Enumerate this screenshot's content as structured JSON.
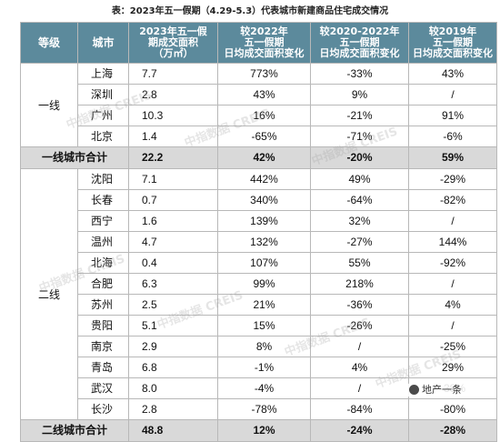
{
  "title": "表：2023年五一假期（4.29-5.3）代表城市新建商品住宅成交情况",
  "headers": {
    "level": "等级",
    "city": "城市",
    "area": [
      "2023年五一假",
      "期成交面积",
      "（万㎡）"
    ],
    "vs2022": [
      "较2022年",
      "五一假期",
      "日均成交面积变化"
    ],
    "vs2020_2022": [
      "较2020-2022年",
      "五一假期",
      "日均成交面积变化"
    ],
    "vs2019": [
      "较2019年",
      "五一假期",
      "日均成交面积变化"
    ]
  },
  "tier1": {
    "label": "一线",
    "rows": [
      {
        "city": "上海",
        "area": "7.7",
        "vs2022": "773%",
        "vs2020_2022": "-33%",
        "vs2019": "43%"
      },
      {
        "city": "深圳",
        "area": "2.8",
        "vs2022": "43%",
        "vs2020_2022": "9%",
        "vs2019": "/"
      },
      {
        "city": "广州",
        "area": "10.3",
        "vs2022": "16%",
        "vs2020_2022": "-21%",
        "vs2019": "91%"
      },
      {
        "city": "北京",
        "area": "1.4",
        "vs2022": "-65%",
        "vs2020_2022": "-71%",
        "vs2019": "-6%"
      }
    ],
    "total": {
      "label": "一线城市合计",
      "area": "22.2",
      "vs2022": "42%",
      "vs2020_2022": "-20%",
      "vs2019": "59%"
    }
  },
  "tier2": {
    "label": "二线",
    "rows": [
      {
        "city": "沈阳",
        "area": "7.1",
        "vs2022": "442%",
        "vs2020_2022": "49%",
        "vs2019": "-29%"
      },
      {
        "city": "长春",
        "area": "0.7",
        "vs2022": "340%",
        "vs2020_2022": "-64%",
        "vs2019": "-82%"
      },
      {
        "city": "西宁",
        "area": "1.6",
        "vs2022": "139%",
        "vs2020_2022": "32%",
        "vs2019": "/"
      },
      {
        "city": "温州",
        "area": "4.7",
        "vs2022": "132%",
        "vs2020_2022": "-27%",
        "vs2019": "144%"
      },
      {
        "city": "北海",
        "area": "0.4",
        "vs2022": "107%",
        "vs2020_2022": "55%",
        "vs2019": "-92%"
      },
      {
        "city": "合肥",
        "area": "6.3",
        "vs2022": "99%",
        "vs2020_2022": "218%",
        "vs2019": "/"
      },
      {
        "city": "苏州",
        "area": "2.5",
        "vs2022": "21%",
        "vs2020_2022": "-36%",
        "vs2019": "4%"
      },
      {
        "city": "贵阳",
        "area": "5.1",
        "vs2022": "15%",
        "vs2020_2022": "-26%",
        "vs2019": "/"
      },
      {
        "city": "南京",
        "area": "2.9",
        "vs2022": "8%",
        "vs2020_2022": "/",
        "vs2019": "-25%"
      },
      {
        "city": "青岛",
        "area": "6.8",
        "vs2022": "-1%",
        "vs2020_2022": "4%",
        "vs2019": "29%"
      },
      {
        "city": "武汉",
        "area": "8.0",
        "vs2022": "-4%",
        "vs2020_2022": "/",
        "vs2019": "-38%"
      },
      {
        "city": "长沙",
        "area": "2.8",
        "vs2022": "-78%",
        "vs2020_2022": "-84%",
        "vs2019": "-80%"
      }
    ],
    "total": {
      "label": "二线城市合计",
      "area": "48.8",
      "vs2022": "12%",
      "vs2020_2022": "-24%",
      "vs2019": "-28%"
    }
  },
  "watermark": "中指数据 CREIS",
  "badge": "地产一条"
}
